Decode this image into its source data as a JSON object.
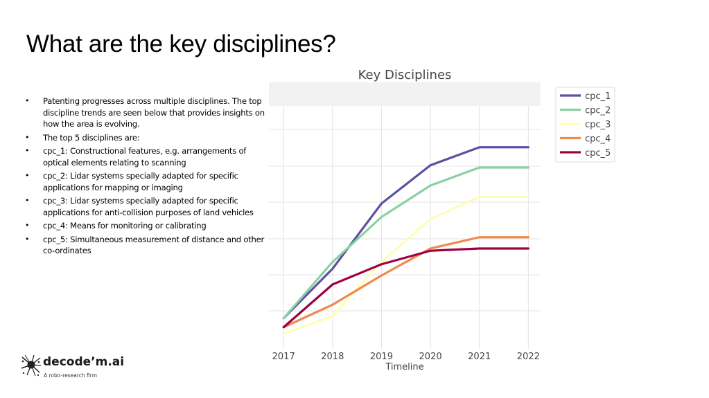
{
  "slide": {
    "title": "What are the key disciplines?",
    "bullets": [
      "Patenting progresses across multiple disciplines. The top discipline trends are seen below that provides insights on how the area is evolving.",
      "The top 5 disciplines are:",
      "cpc_1: Constructional features, e.g. arrangements of optical elements relating to scanning",
      "cpc_2: Lidar systems specially adapted for specific applications for mapping or imaging",
      "cpc_3: Lidar systems specially adapted for specific applications for anti-collision purposes of land vehicles",
      "cpc_4: Means for monitoring or calibrating",
      "cpc_5: Simultaneous measurement of distance and other co-ordinates"
    ]
  },
  "logo": {
    "name": "decode’m.ai",
    "tagline": "A robo-research firm",
    "icon": "splatter-icon"
  },
  "chart_data": {
    "type": "line",
    "title": "Key Disciplines",
    "xlabel": "Timeline",
    "ylabel": "",
    "x": [
      2017,
      2018,
      2019,
      2020,
      2021,
      2022
    ],
    "ylim": [
      0,
      100
    ],
    "grid": true,
    "legend_position": "top-right",
    "series": [
      {
        "name": "cpc_1",
        "color": "#5e4fa2",
        "values": [
          9,
          31,
          60,
          77,
          85,
          85
        ]
      },
      {
        "name": "cpc_2",
        "color": "#88d1a1",
        "values": [
          9,
          34,
          54,
          68,
          76,
          76
        ]
      },
      {
        "name": "cpc_3",
        "color": "#fefdb8",
        "values": [
          2,
          10,
          34,
          53,
          63,
          63
        ]
      },
      {
        "name": "cpc_4",
        "color": "#ef8a4e",
        "values": [
          5,
          15,
          28,
          40,
          45,
          45
        ]
      },
      {
        "name": "cpc_5",
        "color": "#9e0142",
        "values": [
          5,
          24,
          33,
          39,
          40,
          40
        ]
      }
    ]
  }
}
